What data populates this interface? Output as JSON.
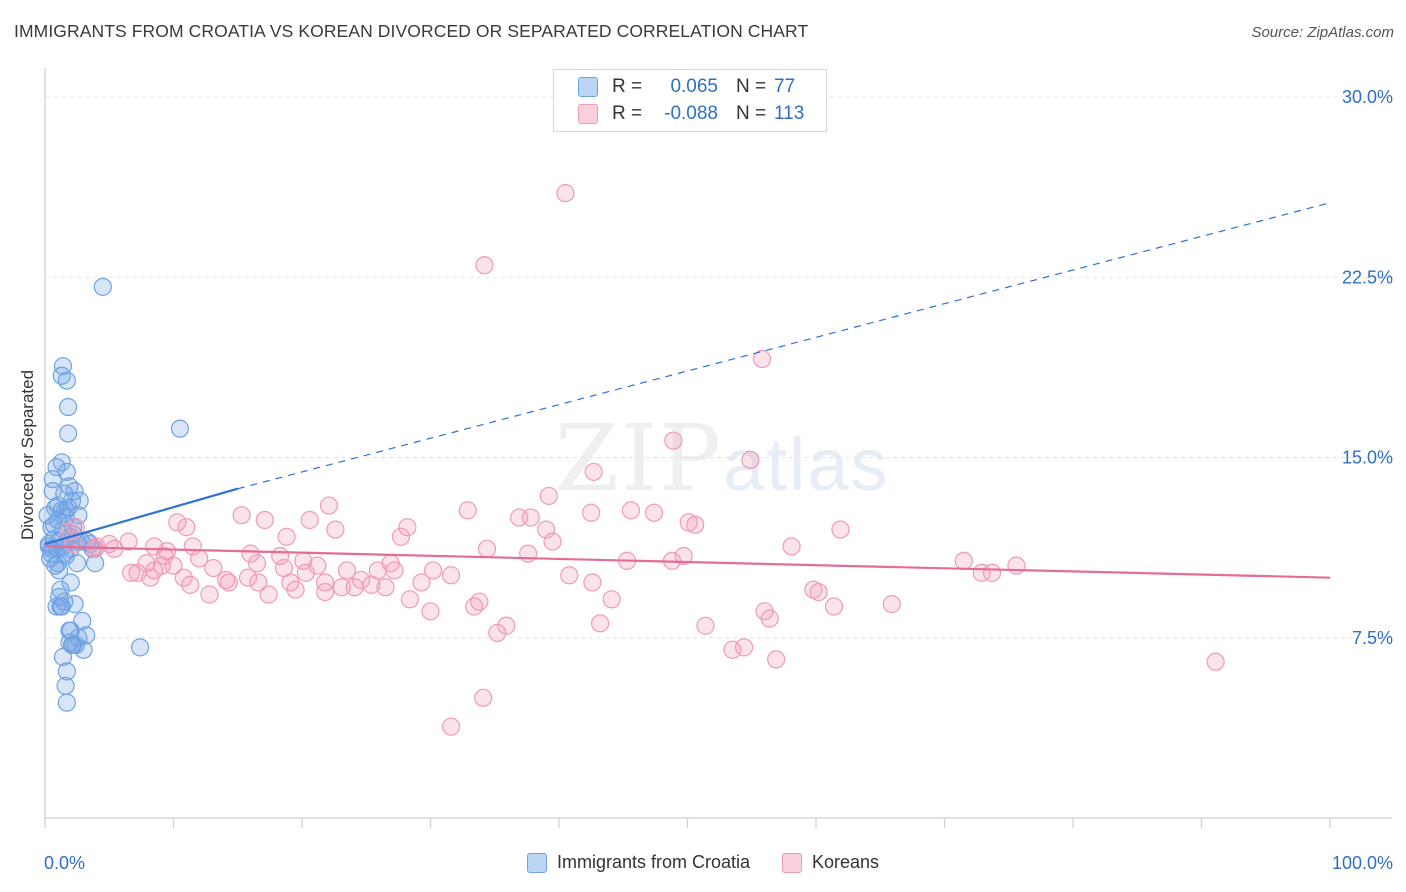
{
  "title": "IMMIGRANTS FROM CROATIA VS KOREAN DIVORCED OR SEPARATED CORRELATION CHART",
  "source": "Source: ZipAtlas.com",
  "watermark": {
    "zip": "ZIP",
    "atlas": "atlas"
  },
  "legend": {
    "rows": [
      {
        "r_label": "R =",
        "r_value": "0.065",
        "n_label": "N =",
        "n_value": "77",
        "color": "#6fa3e3"
      },
      {
        "r_label": "R =",
        "r_value": "-0.088",
        "n_label": "N =",
        "n_value": "113",
        "color": "#f09ab6"
      }
    ]
  },
  "bottom_legend": [
    "Immigrants from Croatia",
    "Koreans"
  ],
  "chart_data": {
    "type": "scatter",
    "ylabel": "Divorced or Separated",
    "xlim": [
      0,
      100
    ],
    "ylim": [
      0,
      30.0
    ],
    "x_tick_labels": [
      "0.0%",
      "100.0%"
    ],
    "y_ticks": [
      7.5,
      15.0,
      22.5,
      30.0
    ],
    "y_tick_labels": [
      "7.5%",
      "15.0%",
      "22.5%",
      "30.0%"
    ],
    "grid": true,
    "colors": {
      "croatia": "#6fa3e3",
      "koreans": "#f09ab6",
      "croatia_line": "#2e72d2",
      "koreans_line": "#e46d94"
    },
    "series": [
      {
        "name": "Immigrants from Croatia",
        "trend": {
          "x0": 0,
          "y0": 11.4,
          "x1": 15,
          "y1": 13.7,
          "x_dash_end": 100,
          "y_dash_end": 25.6
        },
        "points": [
          [
            0.2,
            12.6
          ],
          [
            0.3,
            11.3
          ],
          [
            0.4,
            10.8
          ],
          [
            0.5,
            11.0
          ],
          [
            0.5,
            12.1
          ],
          [
            0.6,
            13.6
          ],
          [
            0.6,
            14.1
          ],
          [
            0.7,
            12.2
          ],
          [
            0.7,
            11.6
          ],
          [
            0.8,
            10.5
          ],
          [
            0.8,
            12.9
          ],
          [
            0.9,
            14.6
          ],
          [
            1.0,
            11.2
          ],
          [
            1.0,
            12.4
          ],
          [
            1.0,
            13.0
          ],
          [
            1.1,
            11.5
          ],
          [
            1.1,
            10.3
          ],
          [
            1.2,
            8.8
          ],
          [
            1.2,
            9.5
          ],
          [
            1.3,
            12.8
          ],
          [
            1.3,
            14.8
          ],
          [
            1.4,
            12.0
          ],
          [
            1.4,
            11.3
          ],
          [
            1.5,
            13.5
          ],
          [
            1.5,
            9.0
          ],
          [
            1.6,
            12.5
          ],
          [
            1.6,
            10.9
          ],
          [
            1.7,
            14.4
          ],
          [
            1.8,
            16.0
          ],
          [
            1.8,
            12.9
          ],
          [
            1.9,
            11.7
          ],
          [
            1.9,
            7.8
          ],
          [
            2.0,
            11.2
          ],
          [
            2.0,
            9.8
          ],
          [
            2.1,
            13.2
          ],
          [
            2.1,
            7.2
          ],
          [
            2.2,
            12.1
          ],
          [
            2.2,
            11.8
          ],
          [
            2.3,
            13.6
          ],
          [
            2.3,
            8.9
          ],
          [
            2.4,
            7.2
          ],
          [
            2.5,
            11.5
          ],
          [
            2.5,
            10.6
          ],
          [
            2.6,
            12.6
          ],
          [
            2.7,
            13.2
          ],
          [
            2.8,
            11.5
          ],
          [
            2.9,
            8.2
          ],
          [
            3.0,
            7.0
          ],
          [
            3.2,
            7.6
          ],
          [
            3.3,
            11.5
          ],
          [
            3.5,
            11.4
          ],
          [
            3.7,
            11.2
          ],
          [
            3.9,
            10.6
          ],
          [
            1.3,
            18.4
          ],
          [
            1.4,
            18.8
          ],
          [
            1.7,
            18.2
          ],
          [
            1.8,
            17.1
          ],
          [
            1.5,
            11.0
          ],
          [
            1.6,
            12.8
          ],
          [
            1.9,
            13.8
          ],
          [
            1.0,
            10.6
          ],
          [
            1.1,
            9.2
          ],
          [
            0.9,
            8.8
          ],
          [
            1.3,
            8.8
          ],
          [
            1.4,
            6.7
          ],
          [
            1.6,
            5.5
          ],
          [
            1.7,
            4.8
          ],
          [
            1.7,
            6.1
          ],
          [
            1.9,
            7.3
          ],
          [
            2.0,
            7.8
          ],
          [
            2.2,
            7.2
          ],
          [
            2.6,
            7.5
          ],
          [
            4.5,
            22.1
          ],
          [
            7.4,
            7.1
          ],
          [
            10.5,
            16.2
          ],
          [
            0.5,
            11.2
          ],
          [
            0.3,
            11.4
          ]
        ]
      },
      {
        "name": "Koreans",
        "trend": {
          "x0": 0,
          "y0": 11.3,
          "x1": 100,
          "y1": 10.0
        },
        "points": [
          [
            40.5,
            26.0
          ],
          [
            34.2,
            23.0
          ],
          [
            55.8,
            19.1
          ],
          [
            42.7,
            14.4
          ],
          [
            48.9,
            15.7
          ],
          [
            54.9,
            14.9
          ],
          [
            39.2,
            13.4
          ],
          [
            32.9,
            12.8
          ],
          [
            36.9,
            12.5
          ],
          [
            37.8,
            12.5
          ],
          [
            42.5,
            12.7
          ],
          [
            45.6,
            12.8
          ],
          [
            47.4,
            12.7
          ],
          [
            50.1,
            12.3
          ],
          [
            50.6,
            12.2
          ],
          [
            61.9,
            12.0
          ],
          [
            34.4,
            11.2
          ],
          [
            39.5,
            11.5
          ],
          [
            39.0,
            12.0
          ],
          [
            37.6,
            11.0
          ],
          [
            40.8,
            10.1
          ],
          [
            45.3,
            10.7
          ],
          [
            48.8,
            10.7
          ],
          [
            49.7,
            10.9
          ],
          [
            42.6,
            9.8
          ],
          [
            44.1,
            9.1
          ],
          [
            58.1,
            11.3
          ],
          [
            60.2,
            9.4
          ],
          [
            71.5,
            10.7
          ],
          [
            73.7,
            10.2
          ],
          [
            75.6,
            10.5
          ],
          [
            33.8,
            9.0
          ],
          [
            27.7,
            11.7
          ],
          [
            28.2,
            12.1
          ],
          [
            29.3,
            9.8
          ],
          [
            31.6,
            10.1
          ],
          [
            30.0,
            8.6
          ],
          [
            33.4,
            8.8
          ],
          [
            34.1,
            5.0
          ],
          [
            31.6,
            3.8
          ],
          [
            35.9,
            8.0
          ],
          [
            35.2,
            7.7
          ],
          [
            43.2,
            8.1
          ],
          [
            51.4,
            8.0
          ],
          [
            54.4,
            7.1
          ],
          [
            53.5,
            7.0
          ],
          [
            56.9,
            6.6
          ],
          [
            56.4,
            8.3
          ],
          [
            61.4,
            8.8
          ],
          [
            59.8,
            9.5
          ],
          [
            56.0,
            8.6
          ],
          [
            65.9,
            8.9
          ],
          [
            91.1,
            6.5
          ],
          [
            72.9,
            10.2
          ],
          [
            4.0,
            11.3
          ],
          [
            5.0,
            11.4
          ],
          [
            6.5,
            11.5
          ],
          [
            8.5,
            10.3
          ],
          [
            9.3,
            10.9
          ],
          [
            10.3,
            12.3
          ],
          [
            11.0,
            12.1
          ],
          [
            11.5,
            11.3
          ],
          [
            12.0,
            10.8
          ],
          [
            13.1,
            10.4
          ],
          [
            14.3,
            9.8
          ],
          [
            15.3,
            12.6
          ],
          [
            16.0,
            11.0
          ],
          [
            16.5,
            10.6
          ],
          [
            17.1,
            12.4
          ],
          [
            18.3,
            10.9
          ],
          [
            18.8,
            11.7
          ],
          [
            19.5,
            9.5
          ],
          [
            20.1,
            10.7
          ],
          [
            20.3,
            10.2
          ],
          [
            21.2,
            10.5
          ],
          [
            21.8,
            9.8
          ],
          [
            22.1,
            13.0
          ],
          [
            22.6,
            12.0
          ],
          [
            23.5,
            10.3
          ],
          [
            24.1,
            9.6
          ],
          [
            24.6,
            9.9
          ],
          [
            25.4,
            9.7
          ],
          [
            25.9,
            10.3
          ],
          [
            26.5,
            9.6
          ],
          [
            26.9,
            10.6
          ],
          [
            27.2,
            10.3
          ],
          [
            28.4,
            9.1
          ],
          [
            30.2,
            10.3
          ],
          [
            6.7,
            10.2
          ],
          [
            7.2,
            10.2
          ],
          [
            8.2,
            10.0
          ],
          [
            8.5,
            11.3
          ],
          [
            10.0,
            10.5
          ],
          [
            10.8,
            10.0
          ],
          [
            11.3,
            9.7
          ],
          [
            12.8,
            9.3
          ],
          [
            14.1,
            9.9
          ],
          [
            15.8,
            10.0
          ],
          [
            16.6,
            9.8
          ],
          [
            17.4,
            9.3
          ],
          [
            18.6,
            10.4
          ],
          [
            19.1,
            9.8
          ],
          [
            20.6,
            12.4
          ],
          [
            21.8,
            9.4
          ],
          [
            23.1,
            9.6
          ],
          [
            5.4,
            11.2
          ],
          [
            3.9,
            11.2
          ],
          [
            2.4,
            12.1
          ],
          [
            1.8,
            11.9
          ],
          [
            7.9,
            10.6
          ],
          [
            9.1,
            10.5
          ],
          [
            9.5,
            11.1
          ],
          [
            2.2,
            11.4
          ]
        ]
      }
    ]
  }
}
